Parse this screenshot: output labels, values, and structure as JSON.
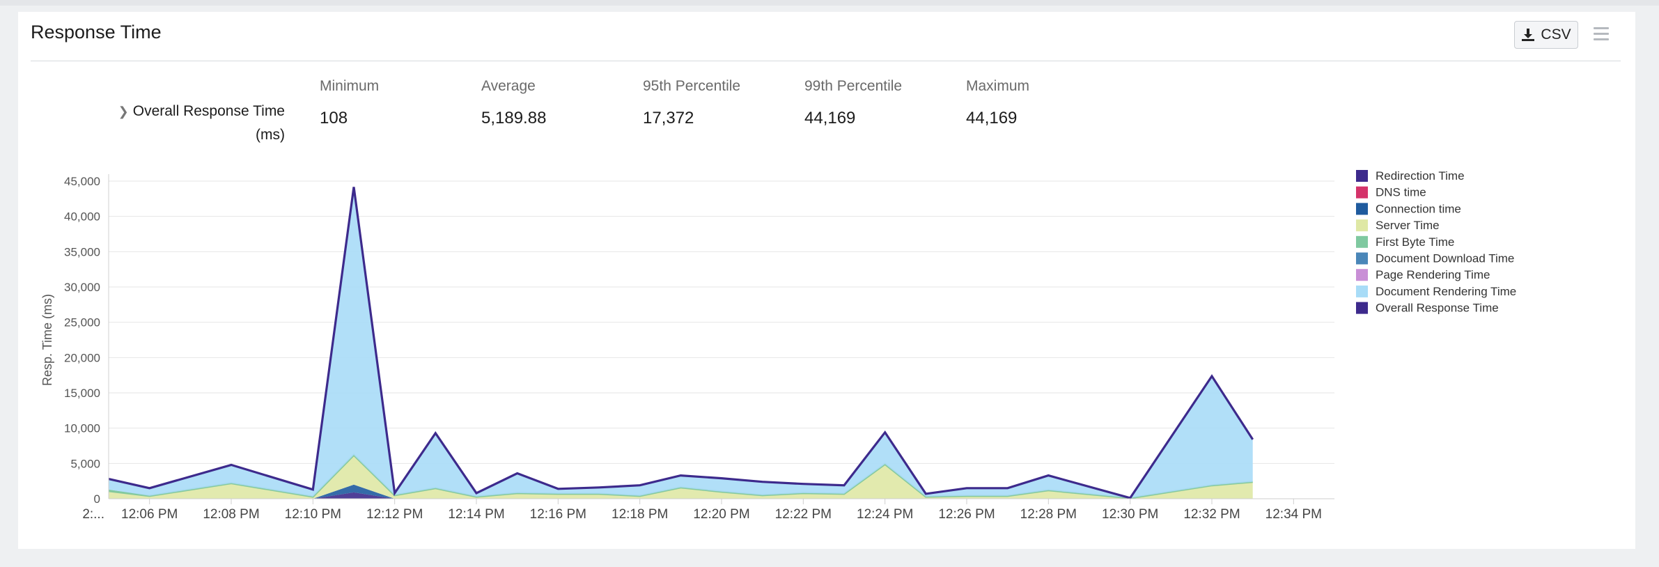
{
  "panel": {
    "title": "Response Time",
    "csv_label": "CSV",
    "csv_icon": "download-icon",
    "menu_icon": "hamburger-menu-icon"
  },
  "stats": {
    "row_label_line1": "Overall Response Time",
    "row_label_line2": "(ms)",
    "columns": [
      {
        "header": "Minimum",
        "value": "108"
      },
      {
        "header": "Average",
        "value": "5,189.88"
      },
      {
        "header": "95th Percentile",
        "value": "17,372"
      },
      {
        "header": "99th Percentile",
        "value": "44,169"
      },
      {
        "header": "Maximum",
        "value": "44,169"
      }
    ]
  },
  "chart_data": {
    "type": "area",
    "ylabel": "Resp. Time (ms)",
    "ylim": [
      0,
      45000
    ],
    "yticks": [
      "0",
      "5,000",
      "10,000",
      "15,000",
      "20,000",
      "25,000",
      "30,000",
      "35,000",
      "40,000",
      "45,000"
    ],
    "ytick_values": [
      0,
      5000,
      10000,
      15000,
      20000,
      25000,
      30000,
      35000,
      40000,
      45000
    ],
    "x_range": [
      "12:05",
      "12:35"
    ],
    "xticks": [
      "12:06 PM",
      "12:08 PM",
      "12:10 PM",
      "12:12 PM",
      "12:14 PM",
      "12:16 PM",
      "12:18 PM",
      "12:20 PM",
      "12:22 PM",
      "12:24 PM",
      "12:26 PM",
      "12:28 PM",
      "12:30 PM",
      "12:32 PM",
      "12:34 PM"
    ],
    "xtick_times": [
      "12:06",
      "12:08",
      "12:10",
      "12:12",
      "12:14",
      "12:16",
      "12:18",
      "12:20",
      "12:22",
      "12:24",
      "12:26",
      "12:28",
      "12:30",
      "12:32",
      "12:34"
    ],
    "x_cut_label": "2:...",
    "x": [
      "12:05",
      "12:06",
      "12:08",
      "12:10",
      "12:11",
      "12:12",
      "12:13",
      "12:14",
      "12:15",
      "12:16",
      "12:17",
      "12:18",
      "12:19",
      "12:20",
      "12:21",
      "12:22",
      "12:23",
      "12:24",
      "12:25",
      "12:26",
      "12:27",
      "12:28",
      "12:30",
      "12:32",
      "12:33"
    ],
    "grid": true,
    "legend_position": "right",
    "series": [
      {
        "name": "Redirection Time",
        "color": "#3d2a8c",
        "values": [
          0,
          0,
          0,
          0,
          900,
          0,
          0,
          0,
          0,
          0,
          0,
          0,
          0,
          0,
          0,
          0,
          0,
          0,
          0,
          0,
          0,
          0,
          0,
          0,
          0
        ]
      },
      {
        "name": "DNS time",
        "color": "#d4336a",
        "values": [
          0,
          0,
          0,
          0,
          0,
          0,
          0,
          0,
          0,
          0,
          0,
          0,
          0,
          0,
          0,
          0,
          0,
          0,
          0,
          0,
          0,
          0,
          0,
          0,
          0
        ]
      },
      {
        "name": "Connection time",
        "color": "#1f5b9e",
        "values": [
          0,
          0,
          0,
          0,
          1100,
          0,
          0,
          0,
          0,
          0,
          0,
          0,
          0,
          0,
          0,
          0,
          0,
          0,
          0,
          0,
          0,
          0,
          0,
          0,
          0
        ]
      },
      {
        "name": "Server Time",
        "color": "#dfe8a5",
        "values": [
          1100,
          400,
          2200,
          300,
          4200,
          500,
          1500,
          300,
          800,
          700,
          700,
          400,
          1600,
          1000,
          500,
          800,
          700,
          4900,
          300,
          400,
          400,
          1200,
          100,
          1900,
          2400
        ]
      },
      {
        "name": "First Byte Time",
        "color": "#7fc9a0",
        "values": [
          200,
          0,
          0,
          0,
          0,
          0,
          0,
          0,
          0,
          0,
          0,
          0,
          0,
          0,
          0,
          0,
          0,
          0,
          0,
          0,
          0,
          0,
          0,
          0,
          0
        ]
      },
      {
        "name": "Document Download Time",
        "color": "#4a86b8",
        "values": [
          0,
          0,
          0,
          0,
          0,
          0,
          0,
          0,
          0,
          0,
          0,
          0,
          0,
          0,
          0,
          0,
          0,
          0,
          0,
          0,
          0,
          0,
          0,
          0,
          0
        ]
      },
      {
        "name": "Page Rendering Time",
        "color": "#c98fd6",
        "values": [
          0,
          0,
          0,
          0,
          0,
          0,
          0,
          0,
          0,
          0,
          0,
          0,
          0,
          0,
          0,
          0,
          0,
          0,
          0,
          0,
          0,
          0,
          0,
          0,
          0
        ]
      },
      {
        "name": "Document Rendering Time",
        "color": "#a8dcf7",
        "values": [
          1500,
          1100,
          2500,
          1000,
          37900,
          300,
          7800,
          500,
          2700,
          700,
          900,
          1500,
          1700,
          1900,
          1900,
          1300,
          1200,
          4500,
          400,
          1100,
          1100,
          2100,
          0,
          15500,
          6000
        ]
      },
      {
        "name": "Overall Response Time",
        "color": "#3d2a8c",
        "line": true,
        "values": [
          2800,
          1500,
          4800,
          1300,
          44169,
          800,
          9300,
          800,
          3600,
          1400,
          1600,
          1900,
          3300,
          2900,
          2400,
          2100,
          1900,
          9400,
          700,
          1500,
          1500,
          3300,
          108,
          17372,
          8400
        ]
      }
    ]
  }
}
